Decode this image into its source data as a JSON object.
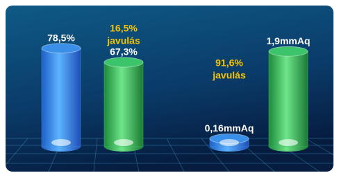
{
  "chart_data": [
    {
      "type": "bar",
      "values": [
        78.5,
        67.3
      ],
      "value_labels": [
        "78,5%",
        "67,3%"
      ],
      "colors": [
        "#3a8fe8",
        "#3cc46a"
      ],
      "ylim": [
        0,
        80
      ],
      "annotation": [
        "16,5%",
        "javulás"
      ]
    },
    {
      "type": "bar",
      "values": [
        0.16,
        1.9
      ],
      "value_labels": [
        "0,16mmAq",
        "1,9mmAq"
      ],
      "colors": [
        "#3a8fe8",
        "#3cc46a"
      ],
      "ylim": [
        0,
        2
      ],
      "annotation": [
        "91,6%",
        "javulás"
      ]
    }
  ]
}
